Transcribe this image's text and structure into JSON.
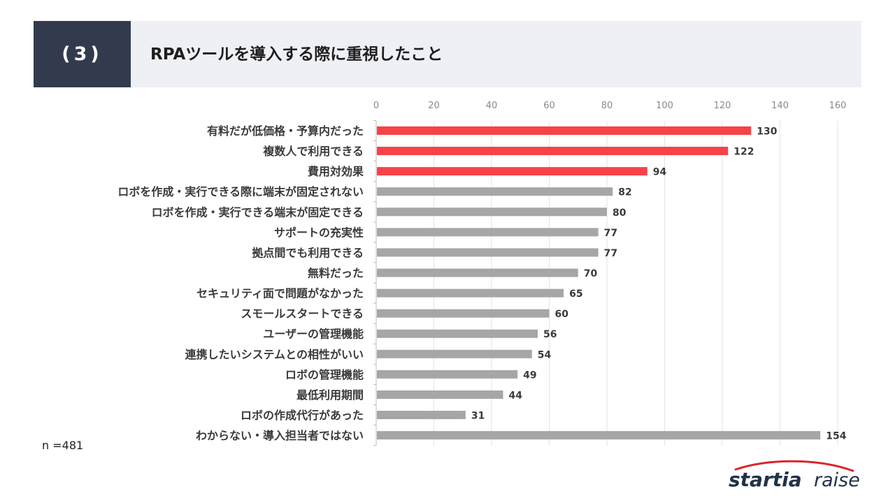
{
  "header": {
    "section": "(3)",
    "title": "RPAツールを導入する際に重視したこと"
  },
  "footnote": "n =481",
  "brand": {
    "name_bold": "startia",
    "name_light": "raise"
  },
  "colors": {
    "highlight": "#f64248",
    "normal": "#a6a6a6",
    "header_dark": "#313b4d",
    "header_light": "#eff0f5",
    "brand_red": "#d8282d",
    "brand_navy": "#213249"
  },
  "chart_data": {
    "type": "bar",
    "orientation": "horizontal",
    "xlim": [
      0,
      160
    ],
    "ticks": [
      0,
      20,
      40,
      60,
      80,
      100,
      120,
      140,
      160
    ],
    "grid": true,
    "categories": [
      "有料だが低価格・予算内だった",
      "複数人で利用できる",
      "費用対効果",
      "ロボを作成・実行できる際に端末が固定されない",
      "ロボを作成・実行できる端末が固定できる",
      "サポートの充実性",
      "拠点間でも利用できる",
      "無料だった",
      "セキュリティ面で問題がなかった",
      "スモールスタートできる",
      "ユーザーの管理機能",
      "連携したいシステムとの相性がいい",
      "ロボの管理機能",
      "最低利用期間",
      "ロボの作成代行があった",
      "わからない・導入担当者ではない"
    ],
    "values": [
      130,
      122,
      94,
      82,
      80,
      77,
      77,
      70,
      65,
      60,
      56,
      54,
      49,
      44,
      31,
      154
    ],
    "highlight_top": 3
  }
}
